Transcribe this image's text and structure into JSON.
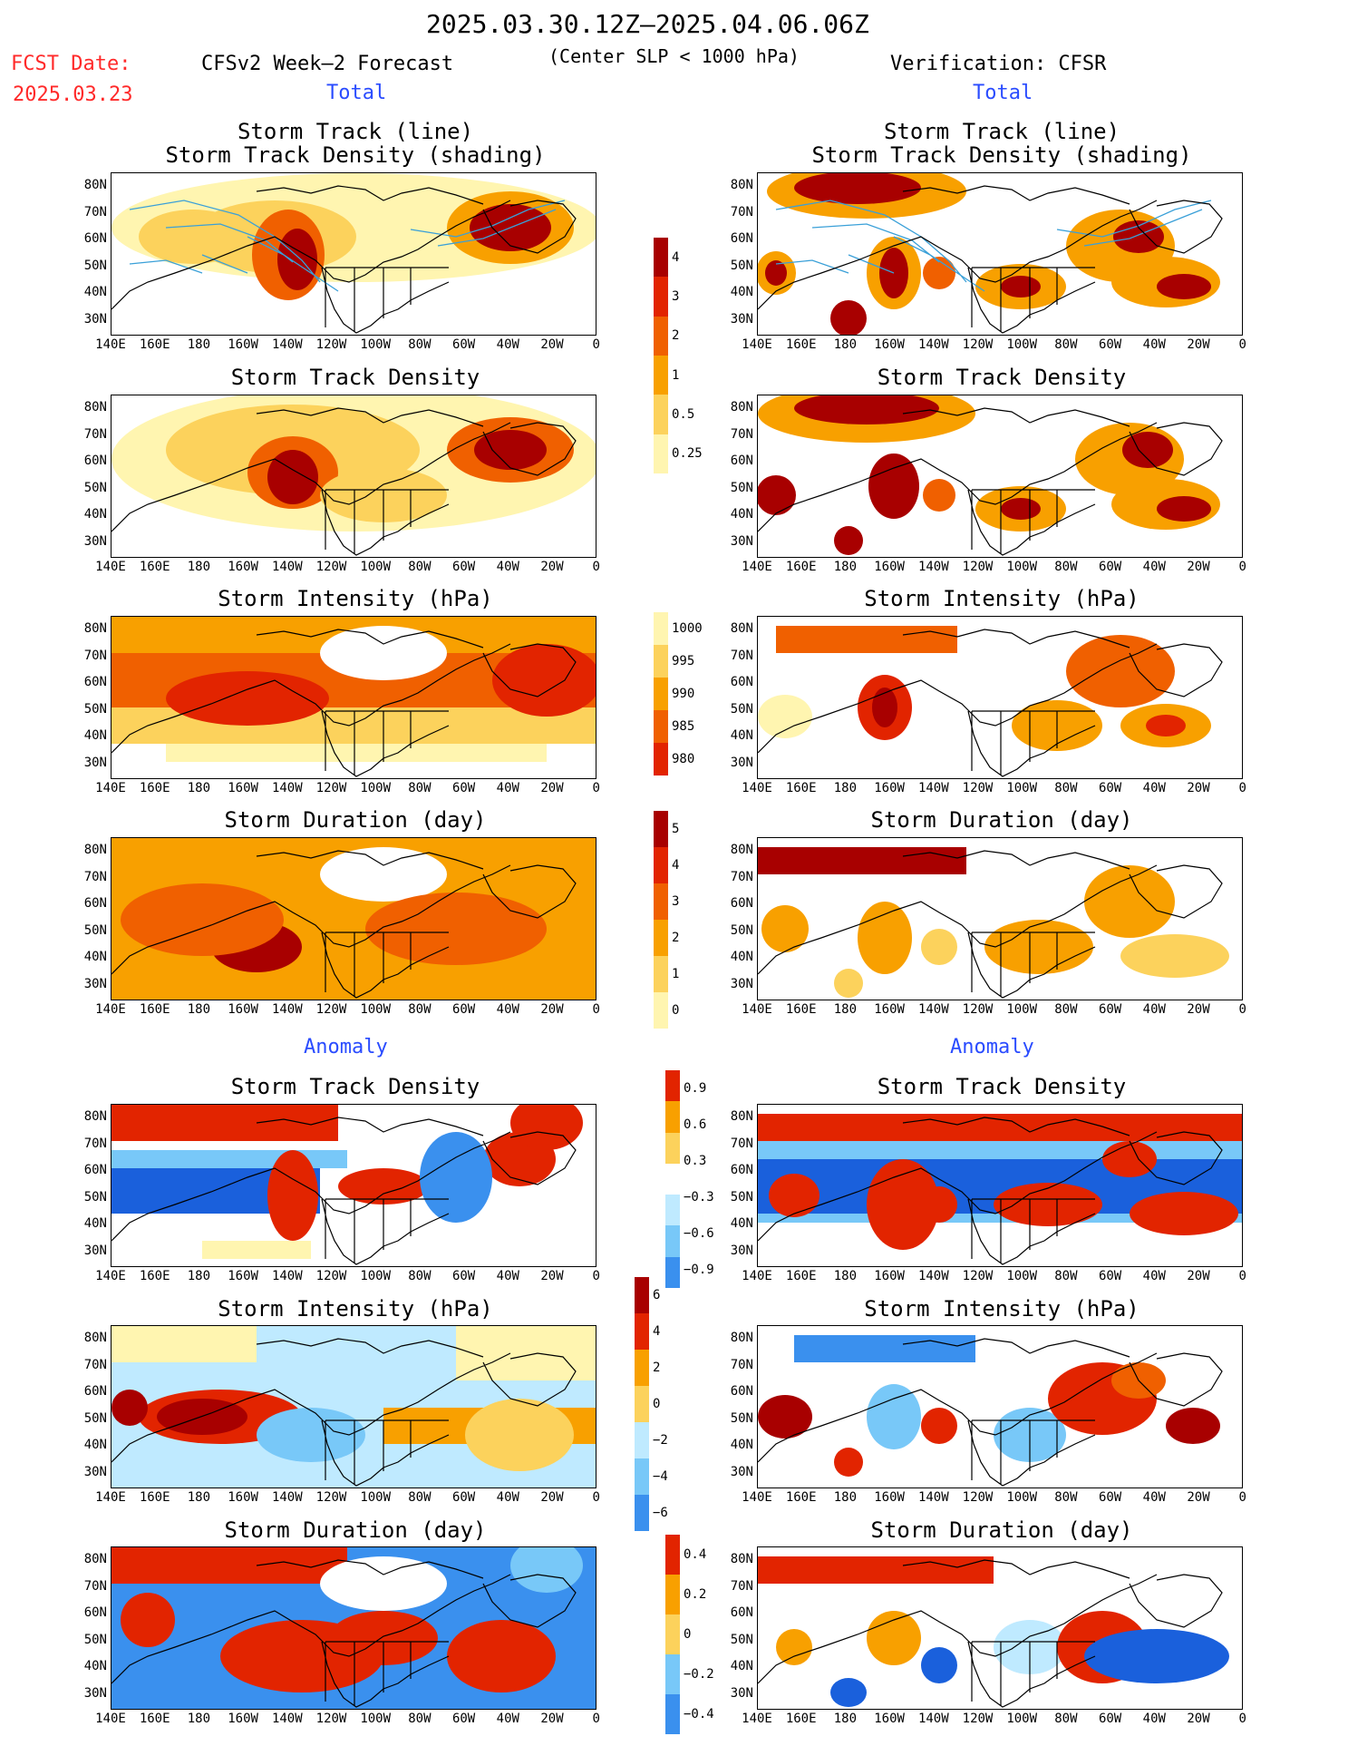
{
  "header": {
    "title": "2025.03.30.12Z–2025.04.06.06Z",
    "fcst_label": "FCST Date:",
    "fcst_date": "2025.03.23",
    "model": "CFSv2 Week–2 Forecast",
    "criterion": "(Center SLP < 1000 hPa)",
    "verification": "Verification: CFSR",
    "total_left": "Total",
    "total_right": "Total",
    "anomaly_left": "Anomaly",
    "anomaly_right": "Anomaly"
  },
  "panel_titles": {
    "track_line": "Storm Track (line)",
    "track_density_shading": "Storm Track Density (shading)",
    "track_density": "Storm Track Density",
    "intensity": "Storm Intensity (hPa)",
    "duration": "Storm Duration (day)"
  },
  "axes": {
    "lat_labels": [
      "80N",
      "70N",
      "60N",
      "50N",
      "40N",
      "30N"
    ],
    "lon_labels": [
      "140E",
      "160E",
      "180",
      "160W",
      "140W",
      "120W",
      "100W",
      "80W",
      "60W",
      "40W",
      "20W",
      "0"
    ]
  },
  "colorbars": {
    "density_total": [
      "4",
      "3",
      "2",
      "1",
      "0.5",
      "0.25"
    ],
    "intensity_total": [
      "1000",
      "995",
      "990",
      "985",
      "980"
    ],
    "duration_total": [
      "5",
      "4",
      "3",
      "2",
      "1",
      "0"
    ],
    "density_anom": [
      "0.9",
      "0.6",
      "0.3",
      "−0.3",
      "−0.6",
      "−0.9"
    ],
    "intensity_anom": [
      "6",
      "4",
      "2",
      "0",
      "−2",
      "−4",
      "−6"
    ],
    "duration_anom": [
      "0.4",
      "0.2",
      "0",
      "−0.2",
      "−0.4"
    ]
  },
  "colors": {
    "dark_red": "#a80000",
    "red": "#e22400",
    "orange_red": "#f06000",
    "orange": "#f8a000",
    "light_orange": "#fcd25c",
    "pale_yellow": "#fff5b0",
    "light_blue": "#bfeaff",
    "mid_blue": "#78c8f8",
    "blue": "#3a90ee",
    "dark_blue": "#1a60dc",
    "track_line": "#3aa0d8"
  }
}
